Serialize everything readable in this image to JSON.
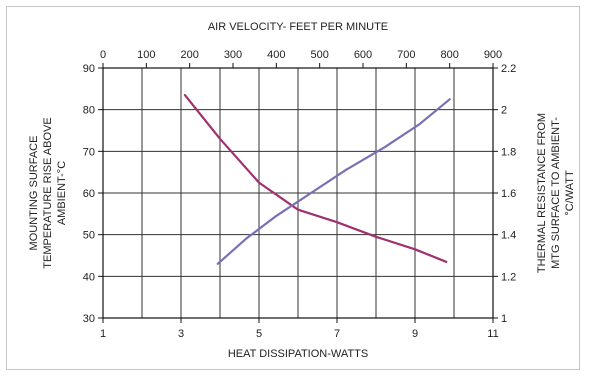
{
  "chart_data": {
    "type": "line",
    "x_bottom": {
      "label": "HEAT DISSIPATION-WATTS",
      "min": 1,
      "max": 11,
      "ticks": [
        1,
        3,
        5,
        7,
        9,
        11
      ],
      "tick_labels": [
        "1",
        "3",
        "5",
        "7",
        "9",
        "11"
      ],
      "grid_values": [
        1,
        2,
        3,
        4,
        5,
        6,
        7,
        8,
        9,
        10,
        11
      ]
    },
    "x_top": {
      "label": "AIR VELOCITY- FEET PER MINUTE",
      "min": 0,
      "max": 900,
      "ticks": [
        0,
        100,
        200,
        300,
        400,
        500,
        600,
        700,
        800,
        900
      ],
      "tick_labels": [
        "0",
        "100",
        "200",
        "300",
        "400",
        "500",
        "600",
        "700",
        "800",
        "900"
      ]
    },
    "y_left": {
      "label_lines": [
        "MOUNTING SURFACE",
        "TEMPERATURE RISE ABOVE",
        "AMBIENT-°C"
      ],
      "min": 30,
      "max": 90,
      "ticks": [
        30,
        40,
        50,
        60,
        70,
        80,
        90
      ],
      "tick_labels": [
        "30",
        "40",
        "50",
        "60",
        "70",
        "80",
        "90"
      ]
    },
    "y_right": {
      "label_lines": [
        "THERMAL RESISTANCE FROM",
        "MTG SURFACE TO AMBIENT-",
        "°C/WATT"
      ],
      "min": 1.0,
      "max": 2.2,
      "ticks": [
        1.0,
        1.2,
        1.4,
        1.6,
        1.8,
        2.0,
        2.2
      ],
      "tick_labels": [
        "1",
        "1.2",
        "1.4",
        "1.6",
        "1.8",
        "2",
        "2.2"
      ]
    },
    "grid": true,
    "series": [
      {
        "axes": "x_bottom/y_left",
        "color": "#a0306e",
        "points": [
          [
            3.1,
            83.5
          ],
          [
            4.0,
            73
          ],
          [
            5.0,
            62.5
          ],
          [
            6.0,
            56
          ],
          [
            7.0,
            53
          ],
          [
            8.0,
            49.5
          ],
          [
            9.0,
            46.5
          ],
          [
            9.8,
            43.5
          ]
        ]
      },
      {
        "axes": "x_top/y_right",
        "color": "#7a6fb5",
        "points": [
          [
            265,
            1.26
          ],
          [
            330,
            1.38
          ],
          [
            400,
            1.49
          ],
          [
            480,
            1.6
          ],
          [
            560,
            1.71
          ],
          [
            650,
            1.82
          ],
          [
            730,
            1.93
          ],
          [
            800,
            2.05
          ]
        ]
      }
    ]
  }
}
